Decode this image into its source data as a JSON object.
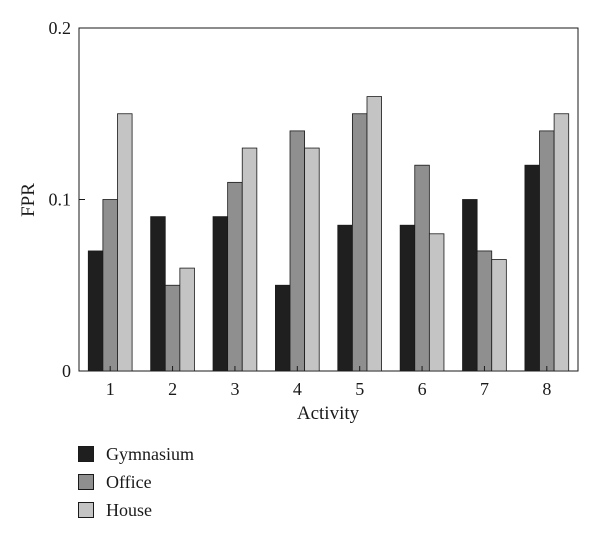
{
  "chart_data": {
    "type": "bar",
    "title": "",
    "xlabel": "Activity",
    "ylabel": "FPR",
    "categories": [
      "1",
      "2",
      "3",
      "4",
      "5",
      "6",
      "7",
      "8"
    ],
    "ylim": [
      0,
      0.2
    ],
    "yticks": [
      "0",
      "0.1",
      "0.2"
    ],
    "grid": false,
    "legend_position": "bottom-left",
    "series": [
      {
        "name": "Gymnasium",
        "color": "#1f1f1f",
        "values": [
          0.07,
          0.09,
          0.09,
          0.05,
          0.085,
          0.085,
          0.1,
          0.12
        ]
      },
      {
        "name": "Office",
        "color": "#8f8f8f",
        "values": [
          0.1,
          0.05,
          0.11,
          0.14,
          0.15,
          0.12,
          0.07,
          0.14
        ]
      },
      {
        "name": "House",
        "color": "#c4c4c4",
        "values": [
          0.15,
          0.06,
          0.13,
          0.13,
          0.16,
          0.08,
          0.065,
          0.15
        ]
      }
    ]
  }
}
